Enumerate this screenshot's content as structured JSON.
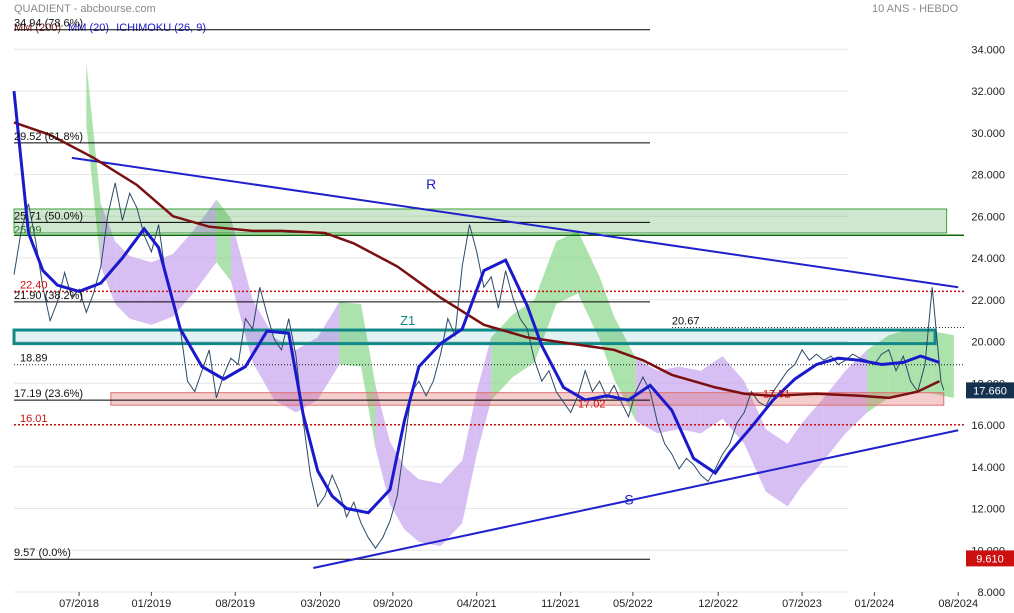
{
  "header": {
    "source": "QUADIENT - abcbourse.com",
    "period": "10 ANS - HEBDO"
  },
  "colors": {
    "price": "#2b4a66",
    "mm20": "#1a1acc",
    "mm_long": "#7a1010",
    "cloud_bull": "#90d890",
    "cloud_bear": "#c9a8ef",
    "trendline": "#2020cc",
    "fib": "#000000",
    "red_level": "#cc1010",
    "green_box": "#3aa03a",
    "teal_box": "#118888",
    "red_box": "#e07070"
  },
  "legend": {
    "mm_long": "MM (200)",
    "mm20": "MM (20)",
    "ichimoku": "ICHIMOKU (26, 9)"
  },
  "chart_data": {
    "type": "line",
    "ylim": [
      8,
      35.5
    ],
    "xlim": [
      "2018-02",
      "2024-09"
    ],
    "y_ticks": [
      "8.000",
      "10.000",
      "12.000",
      "14.000",
      "16.000",
      "18.000",
      "20.000",
      "22.000",
      "24.000",
      "26.000",
      "28.000",
      "30.000",
      "32.000",
      "34.000"
    ],
    "x_ticks": [
      {
        "label": "07/2018",
        "t": 2018.5
      },
      {
        "label": "01/2019",
        "t": 2019.0
      },
      {
        "label": "08/2019",
        "t": 2019.58
      },
      {
        "label": "03/2020",
        "t": 2020.17
      },
      {
        "label": "09/2020",
        "t": 2020.67
      },
      {
        "label": "04/2021",
        "t": 2021.25
      },
      {
        "label": "11/2021",
        "t": 2021.83
      },
      {
        "label": "05/2022",
        "t": 2022.33
      },
      {
        "label": "12/2022",
        "t": 2022.92
      },
      {
        "label": "07/2023",
        "t": 2023.5
      },
      {
        "label": "01/2024",
        "t": 2024.0
      },
      {
        "label": "08/2024",
        "t": 2024.58
      }
    ],
    "fib_levels": [
      {
        "label": "34.94  (78.6%)",
        "value": 34.94
      },
      {
        "label": "29.52  (61.8%)",
        "value": 29.52
      },
      {
        "label": "25.71  (50.0%)",
        "value": 25.71
      },
      {
        "label": "21.90  (38.2%)",
        "value": 21.9
      },
      {
        "label": "17.19  (23.6%)",
        "value": 17.19
      },
      {
        "label": "9.57  (0.0%)",
        "value": 9.57
      }
    ],
    "black_levels": [
      {
        "label": "18.89",
        "value": 18.89
      },
      {
        "label": "20.67",
        "value": 20.67
      }
    ],
    "red_levels": [
      {
        "label": "22.40",
        "value": 22.4
      },
      {
        "label": "16.01",
        "value": 16.01
      }
    ],
    "green_level": {
      "label": "25.09",
      "value": 25.09
    },
    "red_annotations": [
      {
        "label": "17.02",
        "t": 2021.95,
        "value": 17.02
      },
      {
        "label": "17.51",
        "t": 2023.23,
        "value": 17.51
      }
    ],
    "zone_label": {
      "label": "Z1",
      "t": 2020.72,
      "value": 20.8
    },
    "trend_labels": [
      {
        "label": "R",
        "t": 2020.9,
        "value": 27.3
      },
      {
        "label": "S",
        "t": 2022.27,
        "value": 12.2
      }
    ],
    "resistance_line": {
      "start": [
        "2018.45",
        28.8
      ],
      "end": [
        "2024.58",
        22.6
      ]
    },
    "support_line": {
      "start": [
        "2020.12",
        9.15
      ],
      "end": [
        "2024.58",
        15.75
      ]
    },
    "green_box": {
      "t0": 2018.05,
      "t1": 2024.5,
      "y0": 25.2,
      "y1": 26.35
    },
    "teal_box": {
      "t0": 2018.05,
      "t1": 2024.42,
      "y0": 19.9,
      "y1": 20.55
    },
    "red_box": {
      "t0": 2018.72,
      "t1": 2024.48,
      "y0": 16.95,
      "y1": 17.55
    },
    "price_tags": [
      {
        "label": "17.660",
        "value": 17.66,
        "color": "#14324e"
      },
      {
        "label": "9.610",
        "value": 9.61,
        "color": "#cc1010"
      }
    ],
    "series": [
      {
        "name": "MM (200)",
        "x": [
          2018.05,
          2018.3,
          2018.6,
          2018.9,
          2019.15,
          2019.4,
          2019.7,
          2019.9,
          2020.2,
          2020.4,
          2020.7,
          2021.0,
          2021.3,
          2021.6,
          2021.9,
          2022.2,
          2022.4,
          2022.6,
          2022.9,
          2023.1,
          2023.3,
          2023.6,
          2023.9,
          2024.1,
          2024.3,
          2024.45
        ],
        "values": [
          30.5,
          29.9,
          28.8,
          27.5,
          26.0,
          25.5,
          25.3,
          25.3,
          25.2,
          24.7,
          23.6,
          22.1,
          20.8,
          20.2,
          19.9,
          19.6,
          19.1,
          18.4,
          17.8,
          17.5,
          17.4,
          17.5,
          17.4,
          17.3,
          17.6,
          18.1
        ]
      },
      {
        "name": "MM (20)",
        "x": [
          2018.05,
          2018.15,
          2018.25,
          2018.35,
          2018.5,
          2018.65,
          2018.8,
          2018.95,
          2019.05,
          2019.2,
          2019.35,
          2019.5,
          2019.65,
          2019.8,
          2019.95,
          2020.05,
          2020.15,
          2020.25,
          2020.35,
          2020.5,
          2020.65,
          2020.75,
          2020.85,
          2021.0,
          2021.15,
          2021.3,
          2021.45,
          2021.6,
          2021.7,
          2021.85,
          2022.0,
          2022.15,
          2022.3,
          2022.45,
          2022.6,
          2022.75,
          2022.9,
          2023.0,
          2023.15,
          2023.3,
          2023.45,
          2023.6,
          2023.75,
          2023.9,
          2024.05,
          2024.2,
          2024.32,
          2024.45
        ],
        "values": [
          32,
          25.2,
          23.4,
          22.7,
          22.4,
          22.8,
          24.0,
          25.4,
          24.5,
          20.6,
          18.8,
          18.2,
          18.8,
          20.5,
          20.4,
          16.5,
          13.8,
          12.6,
          12.0,
          11.8,
          12.9,
          16.2,
          18.8,
          19.9,
          20.6,
          23.4,
          23.9,
          21.7,
          19.8,
          17.8,
          17.2,
          17.4,
          17.2,
          17.9,
          16.7,
          14.4,
          13.7,
          14.7,
          15.9,
          17.2,
          18.2,
          18.9,
          19.2,
          19.1,
          18.9,
          19.0,
          19.3,
          19.0
        ]
      },
      {
        "name": "",
        "x": [
          2018.05,
          2018.1,
          2018.15,
          2018.2,
          2018.25,
          2018.3,
          2018.35,
          2018.4,
          2018.45,
          2018.5,
          2018.55,
          2018.6,
          2018.65,
          2018.7,
          2018.75,
          2018.8,
          2018.85,
          2018.9,
          2018.95,
          2019.0,
          2019.05,
          2019.1,
          2019.15,
          2019.2,
          2019.25,
          2019.3,
          2019.35,
          2019.4,
          2019.45,
          2019.5,
          2019.55,
          2019.6,
          2019.65,
          2019.7,
          2019.75,
          2019.8,
          2019.85,
          2019.9,
          2019.95,
          2020.0,
          2020.05,
          2020.1,
          2020.15,
          2020.2,
          2020.25,
          2020.3,
          2020.35,
          2020.4,
          2020.45,
          2020.5,
          2020.55,
          2020.6,
          2020.65,
          2020.7,
          2020.75,
          2020.8,
          2020.85,
          2020.9,
          2020.95,
          2021.0,
          2021.05,
          2021.1,
          2021.15,
          2021.2,
          2021.25,
          2021.3,
          2021.35,
          2021.4,
          2021.45,
          2021.5,
          2021.55,
          2021.6,
          2021.65,
          2021.7,
          2021.75,
          2021.8,
          2021.85,
          2021.9,
          2021.95,
          2022.0,
          2022.05,
          2022.1,
          2022.15,
          2022.2,
          2022.25,
          2022.3,
          2022.35,
          2022.4,
          2022.45,
          2022.5,
          2022.55,
          2022.6,
          2022.65,
          2022.7,
          2022.75,
          2022.8,
          2022.85,
          2022.9,
          2022.95,
          2023.0,
          2023.05,
          2023.1,
          2023.15,
          2023.2,
          2023.25,
          2023.3,
          2023.35,
          2023.4,
          2023.45,
          2023.5,
          2023.55,
          2023.6,
          2023.65,
          2023.7,
          2023.75,
          2023.8,
          2023.85,
          2023.9,
          2023.95,
          2024.0,
          2024.05,
          2024.1,
          2024.15,
          2024.2,
          2024.25,
          2024.3,
          2024.35,
          2024.4,
          2024.42,
          2024.44,
          2024.46,
          2024.48
        ],
        "values": [
          23.2,
          25.3,
          26.6,
          24.8,
          22.6,
          21.0,
          21.9,
          23.3,
          22.1,
          22.5,
          21.4,
          22.3,
          23.6,
          26.1,
          27.6,
          25.8,
          27.1,
          26.4,
          25.1,
          24.3,
          25.6,
          23.1,
          21.8,
          20.6,
          18.1,
          17.6,
          18.6,
          19.6,
          17.3,
          18.4,
          19.2,
          18.9,
          21.1,
          20.6,
          22.6,
          21.3,
          20.1,
          19.6,
          21.1,
          19.3,
          16.2,
          13.6,
          12.1,
          12.6,
          13.6,
          12.8,
          11.6,
          12.3,
          11.3,
          10.6,
          10.1,
          10.6,
          11.4,
          12.6,
          15.1,
          17.6,
          18.1,
          17.4,
          18.1,
          19.4,
          21.1,
          20.3,
          23.6,
          25.6,
          24.3,
          22.6,
          23.1,
          21.6,
          23.4,
          22.1,
          21.1,
          20.6,
          19.1,
          18.1,
          18.6,
          17.6,
          17.1,
          16.6,
          17.4,
          18.6,
          17.6,
          18.1,
          17.3,
          17.9,
          17.1,
          16.4,
          17.6,
          18.3,
          17.6,
          16.1,
          15.1,
          14.6,
          13.9,
          14.4,
          14.1,
          13.6,
          13.3,
          13.9,
          14.6,
          15.1,
          16.1,
          16.6,
          17.6,
          17.1,
          16.9,
          17.6,
          18.1,
          18.6,
          18.9,
          19.6,
          19.1,
          19.4,
          19.1,
          19.3,
          18.9,
          19.1,
          19.4,
          19.2,
          19.1,
          18.9,
          19.4,
          19.6,
          18.6,
          19.3,
          18.1,
          17.6,
          18.9,
          22.6,
          21.1,
          19.6,
          18.1,
          17.66
        ]
      }
    ]
  }
}
